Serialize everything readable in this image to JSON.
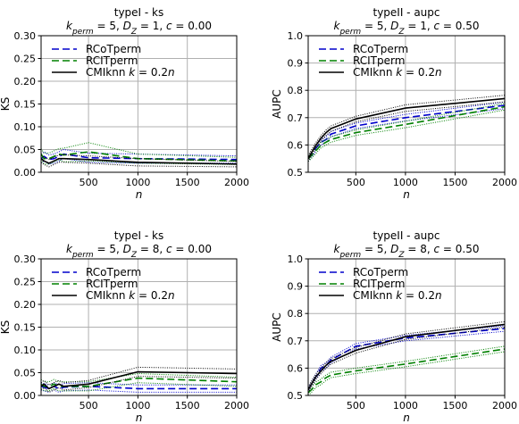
{
  "chart_data": [
    {
      "type": "line",
      "title": "typeI - ks",
      "subtitle": "k_perm = 5, D_Z = 1, c = 0.00",
      "xlabel": "n",
      "ylabel": "KS",
      "xlim": [
        20,
        2000
      ],
      "ylim": [
        0,
        0.3
      ],
      "xticks": [
        500,
        1000,
        1500,
        2000
      ],
      "yticks": [
        0.0,
        0.05,
        0.1,
        0.15,
        0.2,
        0.25,
        0.3
      ],
      "ytick_labels": [
        "0.00",
        "0.05",
        "0.10",
        "0.15",
        "0.20",
        "0.25",
        "0.30"
      ],
      "grid": true,
      "legend": "top-left",
      "x": [
        20,
        50,
        100,
        150,
        200,
        250,
        500,
        1000,
        2000
      ],
      "series": [
        {
          "name": "RCoTperm",
          "color": "#0000cc",
          "dash": "8,4",
          "values": [
            0.03,
            0.035,
            0.028,
            0.03,
            0.035,
            0.04,
            0.032,
            0.03,
            0.028
          ],
          "band": [
            0.01,
            0.01,
            0.01,
            0.01,
            0.01,
            0.01,
            0.01,
            0.01,
            0.008
          ]
        },
        {
          "name": "RCITperm",
          "color": "#008000",
          "dash": "8,4",
          "values": [
            0.04,
            0.03,
            0.03,
            0.035,
            0.04,
            0.038,
            0.045,
            0.03,
            0.025
          ],
          "band": [
            0.012,
            0.012,
            0.012,
            0.012,
            0.012,
            0.015,
            0.02,
            0.01,
            0.008
          ]
        },
        {
          "name": "CMIknn k = 0.2n",
          "color": "#000000",
          "dash": "",
          "values": [
            0.03,
            0.025,
            0.02,
            0.025,
            0.03,
            0.03,
            0.028,
            0.022,
            0.018
          ],
          "band": [
            0.008,
            0.008,
            0.008,
            0.008,
            0.008,
            0.008,
            0.008,
            0.008,
            0.006
          ]
        }
      ]
    },
    {
      "type": "line",
      "title": "typeII - aupc",
      "subtitle": "k_perm = 5, D_Z = 1, c = 0.50",
      "xlabel": "n",
      "ylabel": "AUPC",
      "xlim": [
        20,
        2000
      ],
      "ylim": [
        0.5,
        1.0
      ],
      "xticks": [
        500,
        1000,
        1500,
        2000
      ],
      "yticks": [
        0.5,
        0.6,
        0.7,
        0.8,
        0.9,
        1.0
      ],
      "ytick_labels": [
        "0.5",
        "0.6",
        "0.7",
        "0.8",
        "0.9",
        "1.0"
      ],
      "grid": true,
      "legend": "top-left",
      "x": [
        20,
        50,
        100,
        150,
        200,
        250,
        500,
        1000,
        2000
      ],
      "series": [
        {
          "name": "RCoTperm",
          "color": "#0000cc",
          "dash": "8,4",
          "values": [
            0.55,
            0.56,
            0.59,
            0.61,
            0.62,
            0.64,
            0.67,
            0.7,
            0.745
          ],
          "band": [
            0.01,
            0.01,
            0.01,
            0.01,
            0.01,
            0.01,
            0.01,
            0.012,
            0.012
          ]
        },
        {
          "name": "RCITperm",
          "color": "#008000",
          "dash": "8,4",
          "values": [
            0.55,
            0.56,
            0.58,
            0.6,
            0.61,
            0.62,
            0.645,
            0.675,
            0.74
          ],
          "band": [
            0.01,
            0.01,
            0.01,
            0.01,
            0.01,
            0.01,
            0.01,
            0.012,
            0.012
          ]
        },
        {
          "name": "CMIknn k = 0.2n",
          "color": "#000000",
          "dash": "",
          "values": [
            0.55,
            0.57,
            0.6,
            0.625,
            0.645,
            0.66,
            0.695,
            0.735,
            0.77
          ],
          "band": [
            0.01,
            0.01,
            0.01,
            0.01,
            0.01,
            0.01,
            0.01,
            0.012,
            0.012
          ]
        }
      ]
    },
    {
      "type": "line",
      "title": "typeI - ks",
      "subtitle": "k_perm = 5, D_Z = 8, c = 0.00",
      "xlabel": "n",
      "ylabel": "KS",
      "xlim": [
        20,
        2000
      ],
      "ylim": [
        0,
        0.3
      ],
      "xticks": [
        500,
        1000,
        1500,
        2000
      ],
      "yticks": [
        0.0,
        0.05,
        0.1,
        0.15,
        0.2,
        0.25,
        0.3
      ],
      "ytick_labels": [
        "0.00",
        "0.05",
        "0.10",
        "0.15",
        "0.20",
        "0.25",
        "0.30"
      ],
      "grid": true,
      "legend": "top-left",
      "x": [
        20,
        50,
        100,
        150,
        200,
        250,
        500,
        1000,
        2000
      ],
      "series": [
        {
          "name": "RCoTperm",
          "color": "#0000cc",
          "dash": "8,4",
          "values": [
            0.02,
            0.018,
            0.015,
            0.02,
            0.015,
            0.018,
            0.02,
            0.015,
            0.015
          ],
          "band": [
            0.008,
            0.008,
            0.008,
            0.008,
            0.008,
            0.008,
            0.008,
            0.008,
            0.008
          ]
        },
        {
          "name": "RCITperm",
          "color": "#008000",
          "dash": "8,4",
          "values": [
            0.025,
            0.02,
            0.02,
            0.025,
            0.02,
            0.02,
            0.02,
            0.038,
            0.03
          ],
          "band": [
            0.01,
            0.01,
            0.01,
            0.01,
            0.01,
            0.01,
            0.01,
            0.01,
            0.01
          ]
        },
        {
          "name": "CMIknn k = 0.2n",
          "color": "#000000",
          "dash": "",
          "values": [
            0.02,
            0.025,
            0.015,
            0.02,
            0.025,
            0.02,
            0.025,
            0.052,
            0.048
          ],
          "band": [
            0.008,
            0.008,
            0.008,
            0.008,
            0.008,
            0.008,
            0.008,
            0.01,
            0.01
          ]
        }
      ]
    },
    {
      "type": "line",
      "title": "typeII - aupc",
      "subtitle": "k_perm = 5, D_Z = 8, c = 0.50",
      "xlabel": "n",
      "ylabel": "AUPC",
      "xlim": [
        20,
        2000
      ],
      "ylim": [
        0.5,
        1.0
      ],
      "xticks": [
        500,
        1000,
        1500,
        2000
      ],
      "yticks": [
        0.5,
        0.6,
        0.7,
        0.8,
        0.9,
        1.0
      ],
      "ytick_labels": [
        "0.5",
        "0.6",
        "0.7",
        "0.8",
        "0.9",
        "1.0"
      ],
      "grid": true,
      "legend": "top-left",
      "x": [
        20,
        50,
        100,
        150,
        200,
        250,
        500,
        1000,
        2000
      ],
      "series": [
        {
          "name": "RCoTperm",
          "color": "#0000cc",
          "dash": "8,4",
          "values": [
            0.52,
            0.54,
            0.57,
            0.6,
            0.61,
            0.63,
            0.68,
            0.71,
            0.745
          ],
          "band": [
            0.01,
            0.01,
            0.01,
            0.01,
            0.01,
            0.01,
            0.01,
            0.01,
            0.01
          ]
        },
        {
          "name": "RCITperm",
          "color": "#008000",
          "dash": "8,4",
          "values": [
            0.51,
            0.52,
            0.54,
            0.55,
            0.565,
            0.575,
            0.59,
            0.615,
            0.67
          ],
          "band": [
            0.01,
            0.01,
            0.01,
            0.01,
            0.01,
            0.01,
            0.01,
            0.01,
            0.01
          ]
        },
        {
          "name": "CMIknn k = 0.2n",
          "color": "#000000",
          "dash": "",
          "values": [
            0.52,
            0.54,
            0.57,
            0.59,
            0.61,
            0.625,
            0.665,
            0.715,
            0.76
          ],
          "band": [
            0.01,
            0.01,
            0.01,
            0.01,
            0.01,
            0.01,
            0.01,
            0.01,
            0.01
          ]
        }
      ]
    }
  ]
}
